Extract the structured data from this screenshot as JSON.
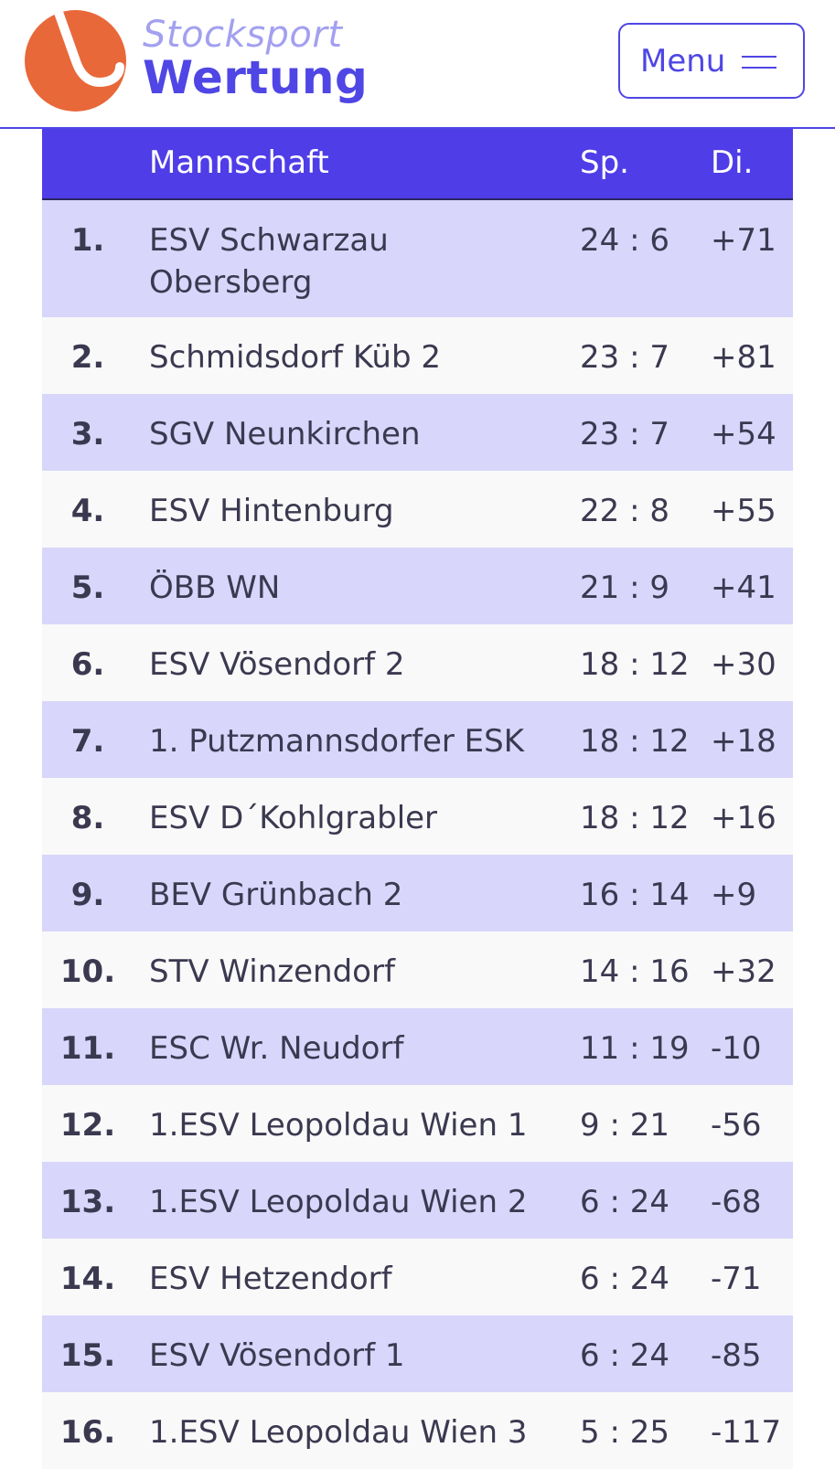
{
  "brand": {
    "line1": "Stocksport",
    "line2": "Wertung",
    "logo_icon": "stock-hook-logo",
    "colors": {
      "accent": "#4f46e5",
      "logo": "#e8683a",
      "logo_text_light": "#a3a0f0"
    }
  },
  "menu": {
    "label": "Menu",
    "icon": "hamburger-icon"
  },
  "table": {
    "headers": {
      "rank": "",
      "team": "Mannschaft",
      "sp": "Sp.",
      "di": "Di."
    },
    "colors": {
      "header_bg": "#4f3de8",
      "row_alt": "#d8d6fa",
      "row_plain": "#f9f9f9"
    },
    "rows": [
      {
        "rank": "1.",
        "team": "ESV Schwarzau Obersberg",
        "sp": "24 : 6",
        "di": "+71"
      },
      {
        "rank": "2.",
        "team": "Schmidsdorf Küb 2",
        "sp": "23 : 7",
        "di": "+81"
      },
      {
        "rank": "3.",
        "team": "SGV Neunkirchen",
        "sp": "23 : 7",
        "di": "+54"
      },
      {
        "rank": "4.",
        "team": "ESV Hintenburg",
        "sp": "22 : 8",
        "di": "+55"
      },
      {
        "rank": "5.",
        "team": "ÖBB WN",
        "sp": "21 : 9",
        "di": "+41"
      },
      {
        "rank": "6.",
        "team": "ESV Vösendorf 2",
        "sp": "18 : 12",
        "di": "+30"
      },
      {
        "rank": "7.",
        "team": "1. Putzmannsdorfer ESK",
        "sp": "18 : 12",
        "di": "+18"
      },
      {
        "rank": "8.",
        "team": "ESV D´Kohlgrabler",
        "sp": "18 : 12",
        "di": "+16"
      },
      {
        "rank": "9.",
        "team": "BEV Grünbach 2",
        "sp": "16 : 14",
        "di": "+9"
      },
      {
        "rank": "10.",
        "team": "STV Winzendorf",
        "sp": "14 : 16",
        "di": "+32"
      },
      {
        "rank": "11.",
        "team": "ESC Wr. Neudorf",
        "sp": "11 : 19",
        "di": "-10"
      },
      {
        "rank": "12.",
        "team": "1.ESV Leopoldau Wien 1",
        "sp": "9 : 21",
        "di": "-56"
      },
      {
        "rank": "13.",
        "team": "1.ESV Leopoldau Wien 2",
        "sp": "6 : 24",
        "di": "-68"
      },
      {
        "rank": "14.",
        "team": "ESV Hetzendorf",
        "sp": "6 : 24",
        "di": "-71"
      },
      {
        "rank": "15.",
        "team": "ESV Vösendorf 1",
        "sp": "6 : 24",
        "di": "-85"
      },
      {
        "rank": "16.",
        "team": "1.ESV Leopoldau Wien 3",
        "sp": "5 : 25",
        "di": "-117"
      }
    ]
  }
}
